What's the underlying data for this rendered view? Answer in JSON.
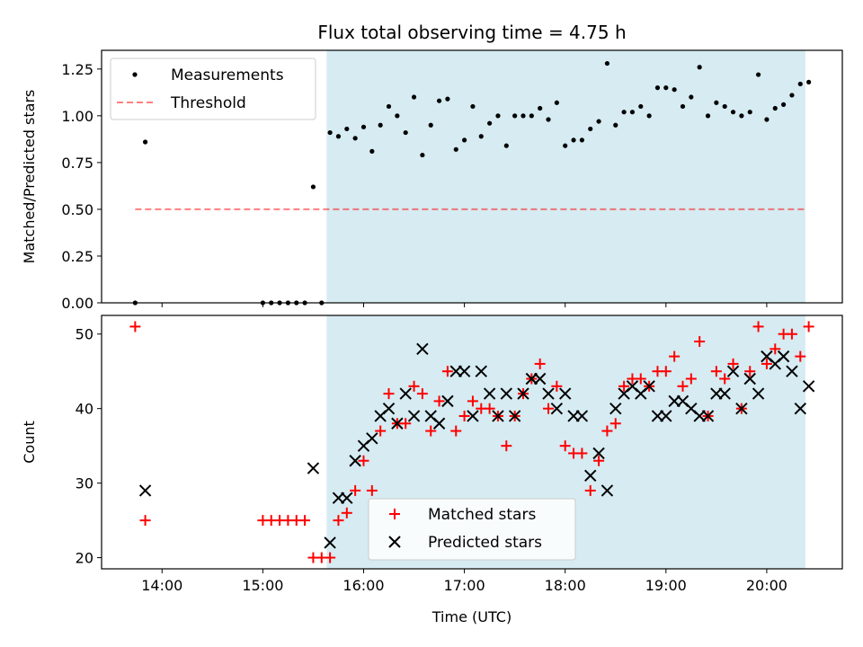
{
  "chart_data": {
    "title": "Flux total observing time = 4.75 h",
    "xlabel": "Time (UTC)",
    "x_unit": "hours UTC",
    "xlim": [
      "13:24",
      "20:45"
    ],
    "x_ticks": [
      "14:00",
      "15:00",
      "16:00",
      "17:00",
      "18:00",
      "19:00",
      "20:00"
    ],
    "shaded_interval": [
      "15:38",
      "20:23"
    ],
    "colors": {
      "shade": "#add8e6",
      "matched": "#ff0000",
      "predicted": "#000000",
      "threshold": "#ff0000"
    },
    "panels": [
      {
        "type": "scatter",
        "ylabel": "Matched/Predicted stars",
        "ylim": [
          0,
          1.35
        ],
        "y_ticks": [
          "0.00",
          "0.25",
          "0.50",
          "0.75",
          "1.00",
          "1.25"
        ],
        "legend_position": "top-left",
        "series": [
          {
            "name": "Measurements",
            "marker": "dot",
            "x": [
              "13:44",
              "13:50",
              "15:00",
              "15:05",
              "15:10",
              "15:15",
              "15:20",
              "15:25",
              "15:30",
              "15:35",
              "15:40",
              "15:45",
              "15:50",
              "15:55",
              "16:00",
              "16:05",
              "16:10",
              "16:15",
              "16:20",
              "16:25",
              "16:30",
              "16:35",
              "16:40",
              "16:45",
              "16:50",
              "16:55",
              "17:00",
              "17:05",
              "17:10",
              "17:15",
              "17:20",
              "17:25",
              "17:30",
              "17:35",
              "17:40",
              "17:45",
              "17:50",
              "17:55",
              "18:00",
              "18:05",
              "18:10",
              "18:15",
              "18:20",
              "18:25",
              "18:30",
              "18:35",
              "18:40",
              "18:45",
              "18:50",
              "18:55",
              "19:00",
              "19:05",
              "19:10",
              "19:15",
              "19:20",
              "19:25",
              "19:30",
              "19:35",
              "19:40",
              "19:45",
              "19:50",
              "19:55",
              "20:00",
              "20:05",
              "20:10",
              "20:15",
              "20:20",
              "20:25"
            ],
            "y": [
              0.0,
              0.86,
              0.0,
              0.0,
              0.0,
              0.0,
              0.0,
              0.0,
              0.62,
              0.0,
              0.91,
              0.89,
              0.93,
              0.88,
              0.94,
              0.81,
              0.95,
              1.05,
              1.0,
              0.91,
              1.1,
              0.79,
              0.95,
              1.08,
              1.09,
              0.82,
              0.87,
              1.05,
              0.89,
              0.96,
              1.0,
              0.84,
              1.0,
              1.0,
              1.0,
              1.04,
              0.98,
              1.07,
              0.84,
              0.87,
              0.87,
              0.93,
              0.97,
              1.28,
              0.95,
              1.02,
              1.02,
              1.05,
              1.0,
              1.15,
              1.15,
              1.14,
              1.05,
              1.1,
              1.26,
              1.0,
              1.07,
              1.05,
              1.02,
              1.0,
              1.02,
              1.22,
              0.98,
              1.04,
              1.06,
              1.11,
              1.17,
              1.18
            ]
          },
          {
            "name": "Threshold",
            "marker": "dashed-line",
            "x": [
              "13:44",
              "20:23"
            ],
            "y": [
              0.5,
              0.5
            ]
          }
        ]
      },
      {
        "type": "scatter",
        "ylabel": "Count",
        "ylim": [
          18.5,
          52.5
        ],
        "y_ticks": [
          "20",
          "30",
          "40",
          "50"
        ],
        "legend_position": "bottom-center",
        "series": [
          {
            "name": "Matched stars",
            "marker": "plus",
            "x": [
              "13:44",
              "13:50",
              "15:00",
              "15:05",
              "15:10",
              "15:15",
              "15:20",
              "15:25",
              "15:30",
              "15:35",
              "15:40",
              "15:45",
              "15:50",
              "15:55",
              "16:00",
              "16:05",
              "16:10",
              "16:15",
              "16:20",
              "16:25",
              "16:30",
              "16:35",
              "16:40",
              "16:45",
              "16:50",
              "16:55",
              "17:00",
              "17:05",
              "17:10",
              "17:15",
              "17:20",
              "17:25",
              "17:30",
              "17:35",
              "17:40",
              "17:45",
              "17:50",
              "17:55",
              "18:00",
              "18:05",
              "18:10",
              "18:15",
              "18:20",
              "18:25",
              "18:30",
              "18:35",
              "18:40",
              "18:45",
              "18:50",
              "18:55",
              "19:00",
              "19:05",
              "19:10",
              "19:15",
              "19:20",
              "19:25",
              "19:30",
              "19:35",
              "19:40",
              "19:45",
              "19:50",
              "19:55",
              "20:00",
              "20:05",
              "20:10",
              "20:15",
              "20:20",
              "20:25"
            ],
            "y": [
              51,
              25,
              25,
              25,
              25,
              25,
              25,
              25,
              20,
              20,
              20,
              25,
              26,
              29,
              33,
              29,
              37,
              42,
              38,
              38,
              43,
              42,
              37,
              41,
              45,
              37,
              39,
              41,
              40,
              40,
              39,
              35,
              39,
              42,
              44,
              46,
              40,
              43,
              35,
              34,
              34,
              29,
              33,
              37,
              38,
              43,
              44,
              44,
              43,
              45,
              45,
              47,
              43,
              44,
              49,
              39,
              45,
              44,
              46,
              40,
              45,
              51,
              46,
              48,
              50,
              50,
              47,
              51
            ]
          },
          {
            "name": "Predicted stars",
            "marker": "x",
            "x": [
              "13:50",
              "15:30",
              "15:40",
              "15:45",
              "15:50",
              "15:55",
              "16:00",
              "16:05",
              "16:10",
              "16:15",
              "16:20",
              "16:25",
              "16:30",
              "16:35",
              "16:40",
              "16:45",
              "16:50",
              "16:55",
              "17:00",
              "17:05",
              "17:10",
              "17:15",
              "17:20",
              "17:25",
              "17:30",
              "17:35",
              "17:40",
              "17:45",
              "17:50",
              "17:55",
              "18:00",
              "18:05",
              "18:10",
              "18:15",
              "18:20",
              "18:25",
              "18:30",
              "18:35",
              "18:40",
              "18:45",
              "18:50",
              "18:55",
              "19:00",
              "19:05",
              "19:10",
              "19:15",
              "19:20",
              "19:25",
              "19:30",
              "19:35",
              "19:40",
              "19:45",
              "19:50",
              "19:55",
              "20:00",
              "20:05",
              "20:10",
              "20:15",
              "20:20",
              "20:25"
            ],
            "y": [
              29,
              32,
              22,
              28,
              28,
              33,
              35,
              36,
              39,
              40,
              38,
              42,
              39,
              48,
              39,
              38,
              41,
              45,
              45,
              39,
              45,
              42,
              39,
              42,
              39,
              42,
              44,
              44,
              42,
              40,
              42,
              39,
              39,
              31,
              34,
              29,
              40,
              42,
              43,
              42,
              43,
              39,
              39,
              41,
              41,
              40,
              39,
              39,
              42,
              42,
              45,
              40,
              44,
              42,
              47,
              46,
              47,
              45,
              40,
              43
            ]
          }
        ]
      }
    ]
  }
}
